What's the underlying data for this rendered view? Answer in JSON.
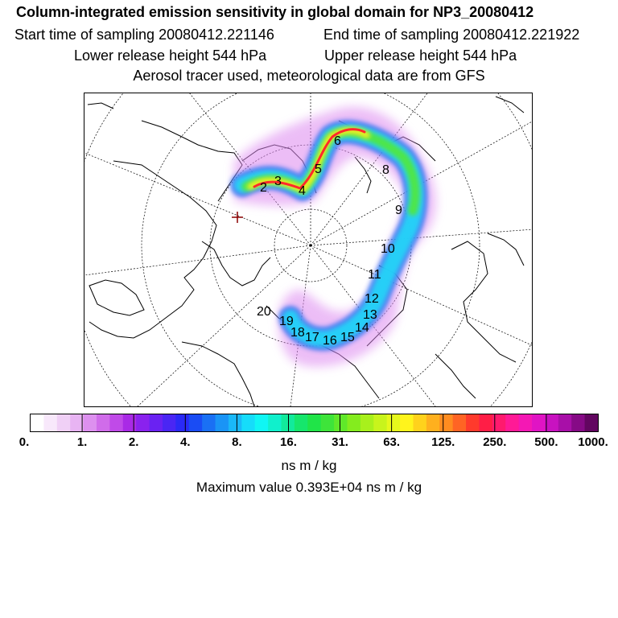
{
  "title": "Column-integrated emission sensitivity in global domain for NP3_20080412",
  "start_time": "Start time of sampling 20080412.221146",
  "end_time": "End time of sampling 20080412.221922",
  "lower_release": "Lower release height  544 hPa",
  "upper_release": "Upper release height  544 hPa",
  "tracer_info": "Aerosol tracer used, meteorological data are from GFS",
  "colorbar": {
    "colors": [
      "#ffffff",
      "#f8e8fb",
      "#f0d0f6",
      "#e8b4f3",
      "#dd90ef",
      "#d06cea",
      "#c04ae8",
      "#a92ae6",
      "#8a22ee",
      "#6a22f2",
      "#4a26f4",
      "#2a2af6",
      "#1a4cf4",
      "#1a70f4",
      "#1a94f6",
      "#1ab8f8",
      "#16dcfa",
      "#10f6f4",
      "#10f0cc",
      "#12ea9c",
      "#16e66c",
      "#20e448",
      "#3ee43a",
      "#60e82a",
      "#84ec1e",
      "#a8f01c",
      "#c8f41c",
      "#e6f81c",
      "#fff41c",
      "#ffd21c",
      "#ffb01e",
      "#ff8c20",
      "#ff6424",
      "#ff3a2c",
      "#ff1e46",
      "#ff1a6e",
      "#ff1a96",
      "#f418b4",
      "#e014c4",
      "#c812c0",
      "#a80fa8",
      "#860a86",
      "#620660"
    ],
    "tick_labels": [
      "0.",
      "1.",
      "2.",
      "4.",
      "8.",
      "16.",
      "31.",
      "63.",
      "125.",
      "250.",
      "500.",
      "1000."
    ]
  },
  "units": "ns m / kg",
  "max_value": "Maximum value  0.393E+04 ns m / kg",
  "plume_colors": {
    "purple": "#cc66ee",
    "blue": "#2f6cf0",
    "cyan": "#22d8f8",
    "green": "#4ee64a",
    "yellow": "#f4f020",
    "red": "#ff2a2a",
    "release_marker": "#8b0000"
  },
  "track_labels": [
    "2",
    "3",
    "4",
    "5",
    "6",
    "8",
    "9",
    "10",
    "11",
    "12",
    "13",
    "14",
    "15",
    "16",
    "17",
    "18",
    "19",
    "20"
  ]
}
